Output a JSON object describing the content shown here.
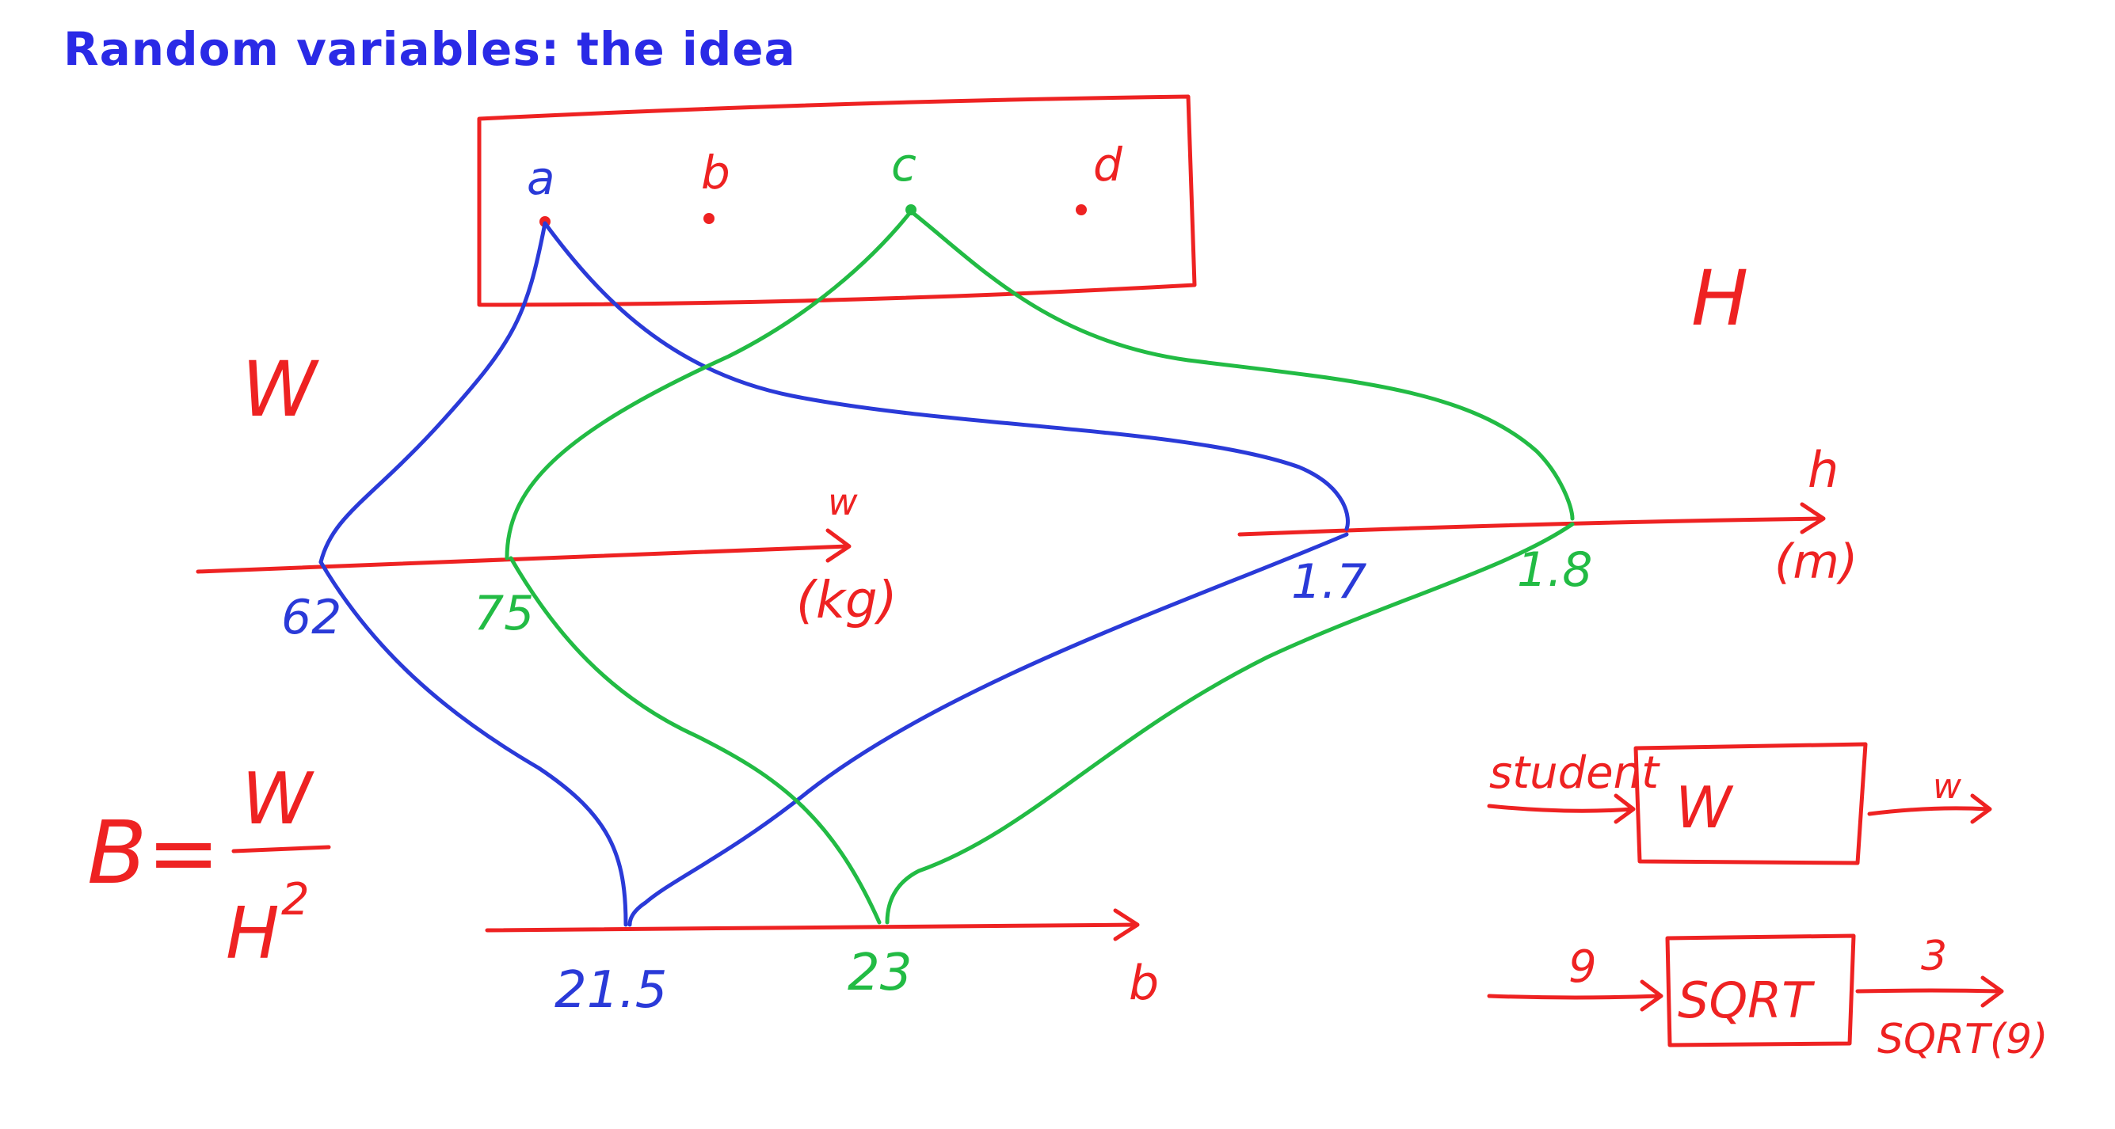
{
  "title": "Random variables: the idea",
  "sample_space": {
    "outcomes": [
      "a",
      "b",
      "c",
      "d"
    ]
  },
  "random_variables": {
    "weight_name": "W",
    "height_name": "H",
    "bmi_formula": {
      "lhs": "B=",
      "numerator": "W",
      "denominator": "H",
      "exponent": "2"
    }
  },
  "axes": {
    "weight": {
      "var": "w",
      "unit": "(kg)",
      "values": [
        "62",
        "75"
      ]
    },
    "height": {
      "var": "h",
      "unit": "(m)",
      "values": [
        "1.7",
        "1.8"
      ]
    },
    "bmi": {
      "var": "b",
      "values": [
        "21.5",
        "23"
      ]
    }
  },
  "machines": {
    "weight_box": {
      "input": "student",
      "label": "W",
      "output": "w"
    },
    "sqrt_box": {
      "input": "9",
      "label": "SQRT",
      "output": "3",
      "output_note": "SQRT(9)"
    }
  },
  "colors": {
    "title": "#2a2ae6",
    "red": "#ee2222",
    "blue": "#2a3ad8",
    "green": "#22bb44"
  }
}
